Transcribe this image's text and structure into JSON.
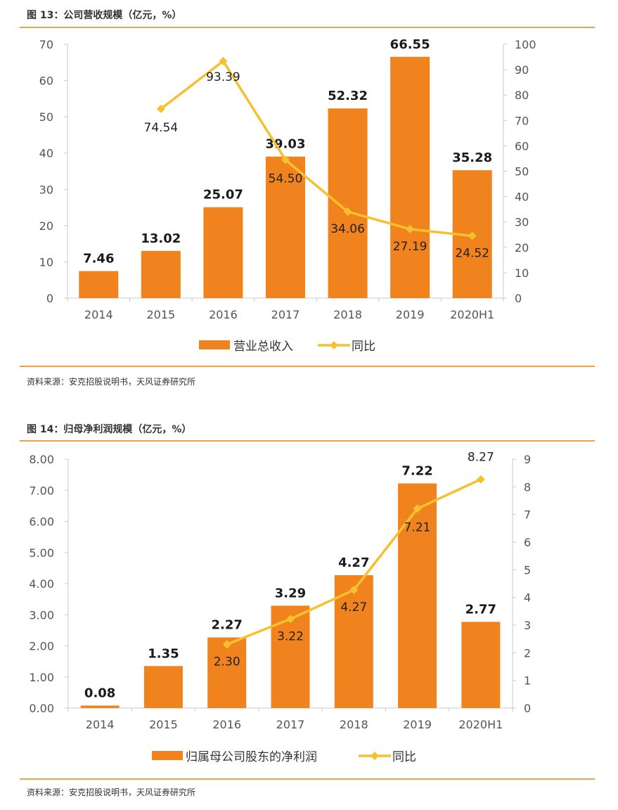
{
  "figures": [
    {
      "title": "图 13：公司营收规模（亿元，%）",
      "source": "资料来源：安克招股说明书，天风证券研究所",
      "chart_data": {
        "type": "bar+line",
        "categories": [
          "2014",
          "2015",
          "2016",
          "2017",
          "2018",
          "2019",
          "2020H1"
        ],
        "bar_series": {
          "name": "营业总收入",
          "values": [
            7.46,
            13.02,
            25.07,
            39.03,
            52.32,
            66.55,
            35.28
          ],
          "labels": [
            "7.46",
            "13.02",
            "25.07",
            "39.03",
            "52.32",
            "66.55",
            "35.28"
          ]
        },
        "line_series": {
          "name": "同比",
          "values": [
            null,
            74.54,
            93.39,
            54.5,
            34.06,
            27.19,
            24.52
          ],
          "labels": [
            null,
            "74.54",
            "93.39",
            "54.50",
            "34.06",
            "27.19",
            "24.52"
          ]
        },
        "left_axis": {
          "ticks": [
            "0",
            "10",
            "20",
            "30",
            "40",
            "50",
            "60",
            "70"
          ],
          "ylim": [
            0,
            70
          ]
        },
        "right_axis": {
          "ticks": [
            "0",
            "10",
            "20",
            "30",
            "40",
            "50",
            "60",
            "70",
            "80",
            "90",
            "100"
          ],
          "ylim": [
            0,
            100
          ]
        },
        "legend_position": "bottom-center",
        "colors": {
          "bar": "#f0831e",
          "line": "#f5c12e"
        }
      }
    },
    {
      "title": "图 14：归母净利润规模（亿元，%）",
      "source": "资料来源：安克招股说明书，天风证券研究所",
      "chart_data": {
        "type": "bar+line",
        "categories": [
          "2014",
          "2015",
          "2016",
          "2017",
          "2018",
          "2019",
          "2020H1"
        ],
        "bar_series": {
          "name": "归属母公司股东的净利润",
          "values": [
            0.08,
            1.35,
            2.27,
            3.29,
            4.27,
            7.22,
            2.77
          ],
          "labels": [
            "0.08",
            "1.35",
            "2.27",
            "3.29",
            "4.27",
            "7.22",
            "2.77"
          ]
        },
        "line_series": {
          "name": "同比",
          "values": [
            null,
            null,
            2.3,
            3.22,
            4.27,
            7.21,
            8.27
          ],
          "labels": [
            null,
            null,
            "2.30",
            "3.22",
            "4.27",
            "7.21",
            "8.27"
          ]
        },
        "left_axis": {
          "ticks": [
            "0.00",
            "1.00",
            "2.00",
            "3.00",
            "4.00",
            "5.00",
            "6.00",
            "7.00",
            "8.00"
          ],
          "ylim": [
            0,
            8
          ]
        },
        "right_axis": {
          "ticks": [
            "0",
            "1",
            "2",
            "3",
            "4",
            "5",
            "6",
            "7",
            "8",
            "9"
          ],
          "ylim": [
            0,
            9
          ]
        },
        "legend_position": "bottom-center",
        "colors": {
          "bar": "#f0831e",
          "line": "#f5c12e"
        }
      }
    }
  ]
}
